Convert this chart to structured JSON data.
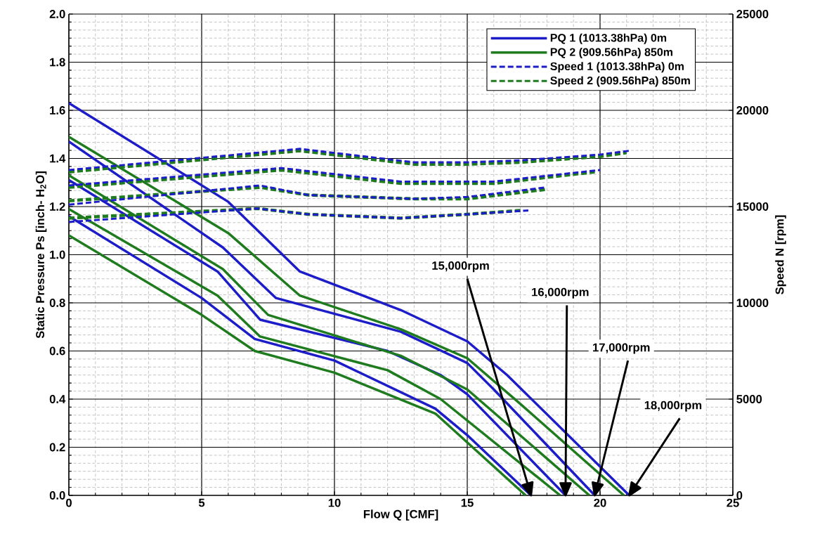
{
  "chart_data": {
    "type": "line",
    "xlabel": "Flow Q  [CMF]",
    "ylabel": "Static Pressure  Ps  [inch- H$_{2}$O]",
    "y2label": "Speed N  [rpm]",
    "xlim": [
      0,
      25
    ],
    "xticks": [
      0,
      5,
      10,
      15,
      20,
      25
    ],
    "ylim": [
      0,
      2
    ],
    "yticks": [
      {
        "value": 0,
        "label": "0.0"
      },
      0.2,
      0.4,
      0.6,
      0.8,
      {
        "value": 1,
        "label": "1.0"
      },
      1.2,
      1.4,
      1.6,
      1.8,
      {
        "value": 2,
        "label": "2.0"
      }
    ],
    "y2lim": [
      0,
      25000
    ],
    "y2ticks": [
      0,
      5000,
      10000,
      15000,
      20000,
      25000
    ],
    "grid": true,
    "legend": "top right",
    "series": [
      {
        "name": "PQ 1 (1013.38hPa) 0m",
        "color": "#1c1cc8",
        "line_style": "solid",
        "x": [
          0,
          6,
          8.7,
          12.5,
          15,
          16.5,
          21.1
        ],
        "values": [
          1.63,
          1.22,
          0.93,
          0.77,
          0.64,
          0.5,
          0
        ]
      },
      {
        "color": "#1c1cc8",
        "line_style": "solid",
        "x": [
          0,
          5.8,
          7.8,
          12.5,
          15,
          16,
          19.8
        ],
        "values": [
          1.47,
          1.03,
          0.82,
          0.68,
          0.55,
          0.44,
          0
        ]
      },
      {
        "color": "#1c1cc8",
        "line_style": "solid",
        "x": [
          0,
          5.6,
          7.2,
          12,
          14,
          15,
          18.7
        ],
        "values": [
          1.31,
          0.93,
          0.73,
          0.6,
          0.5,
          0.42,
          0
        ]
      },
      {
        "color": "#1c1cc8",
        "line_style": "solid",
        "x": [
          0,
          5,
          7,
          10,
          13.8,
          15,
          17.4
        ],
        "values": [
          1.16,
          0.82,
          0.65,
          0.56,
          0.36,
          0.25,
          0
        ]
      },
      {
        "name": "PQ 2 (909.56hPa) 850m",
        "color": "#1e7b1e",
        "line_style": "solid",
        "x": [
          0,
          6,
          8.7,
          12.5,
          15,
          17,
          20.9
        ],
        "values": [
          1.49,
          1.09,
          0.83,
          0.69,
          0.57,
          0.38,
          0
        ]
      },
      {
        "color": "#1e7b1e",
        "line_style": "solid",
        "x": [
          0,
          5.8,
          7.5,
          12.5,
          15,
          19.6
        ],
        "values": [
          1.33,
          0.94,
          0.75,
          0.58,
          0.44,
          0
        ]
      },
      {
        "color": "#1e7b1e",
        "line_style": "solid",
        "x": [
          0,
          5.6,
          7.2,
          12,
          14,
          18.5
        ],
        "values": [
          1.19,
          0.83,
          0.66,
          0.52,
          0.4,
          0
        ]
      },
      {
        "color": "#1e7b1e",
        "line_style": "solid",
        "x": [
          0,
          5,
          7,
          10,
          13.8,
          17.2
        ],
        "values": [
          1.08,
          0.75,
          0.6,
          0.51,
          0.34,
          0
        ]
      },
      {
        "name": "Speed 1 (1013.38hPa) 0m",
        "color": "#1c1cc8",
        "line_style": "dashed",
        "axis": "y2",
        "x": [
          0,
          8.7,
          13,
          15,
          17,
          20,
          21.1
        ],
        "values": [
          16900,
          18000,
          17300,
          17300,
          17400,
          17700,
          17900
        ]
      },
      {
        "color": "#1c1cc8",
        "line_style": "dashed",
        "axis": "y2",
        "x": [
          0,
          8,
          12.5,
          16,
          20
        ],
        "values": [
          16100,
          17000,
          16300,
          16300,
          16900
        ]
      },
      {
        "color": "#1c1cc8",
        "line_style": "dashed",
        "axis": "y2",
        "x": [
          0,
          7.2,
          9,
          13,
          15,
          18
        ],
        "values": [
          15100,
          16100,
          15600,
          15400,
          15500,
          16000
        ]
      },
      {
        "color": "#1c1cc8",
        "line_style": "dashed",
        "axis": "y2",
        "x": [
          0,
          7.1,
          9,
          12.5,
          15,
          17.3
        ],
        "values": [
          14200,
          14900,
          14600,
          14400,
          14600,
          14800
        ]
      },
      {
        "name": "Speed 2 (909.56hPa) 850m",
        "color": "#1e7b1e",
        "line_style": "dashed",
        "axis": "y2",
        "x": [
          0,
          8.7,
          13,
          15,
          17,
          20,
          21
        ],
        "values": [
          16800,
          17900,
          17200,
          17200,
          17300,
          17600,
          17800
        ]
      },
      {
        "color": "#1e7b1e",
        "line_style": "dashed",
        "axis": "y2",
        "x": [
          0,
          8,
          12.5,
          16,
          19.8
        ],
        "values": [
          16000,
          16900,
          16200,
          16200,
          16800
        ]
      },
      {
        "color": "#1e7b1e",
        "line_style": "dashed",
        "axis": "y2",
        "x": [
          0,
          7.2,
          9,
          13,
          15,
          18
        ],
        "values": [
          15300,
          16000,
          15600,
          15400,
          15400,
          15900
        ]
      },
      {
        "color": "#1e7b1e",
        "line_style": "dashed",
        "axis": "y2",
        "x": [
          0,
          7.1,
          9,
          12.5,
          15,
          17
        ],
        "values": [
          14400,
          14900,
          14600,
          14400,
          14600,
          14800
        ]
      }
    ],
    "annotations": [
      {
        "text": "15,000rpm",
        "x": 17.4,
        "y": 0
      },
      {
        "text": "16,000rpm",
        "x": 18.7,
        "y": 0
      },
      {
        "text": "17,000rpm",
        "x": 19.8,
        "y": 0
      },
      {
        "text": "18,000rpm",
        "x": 21.1,
        "y": 0
      }
    ]
  }
}
